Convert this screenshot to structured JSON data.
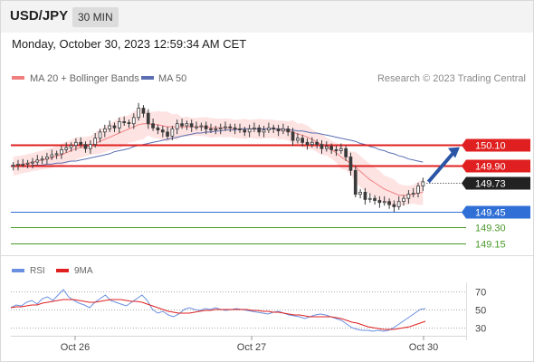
{
  "header": {
    "symbol": "USD/JPY",
    "interval": "30 MIN"
  },
  "datetime": "Monday, October 30, 2023 12:59:34 AM CET",
  "legend": {
    "ma20_label": "MA 20 + Bollinger Bands",
    "ma50_label": "MA 50",
    "credit": "Research © 2023 Trading Central",
    "rsi_label": "RSI",
    "rsi_ma_label": "9MA"
  },
  "colors": {
    "candle": "#3b3b3b",
    "ma20": "#f08080",
    "ma50": "#5b6fb2",
    "band": "#fdd9d9",
    "resistance": "#e02020",
    "current": "#222222",
    "support_main": "#2f6fd6",
    "support_minor": "#4a9a2a",
    "arrow": "#2a55a6",
    "rsi": "#6a8fe0",
    "rsi_ma": "#e02020"
  },
  "chart_data": [
    {
      "type": "candlestick",
      "title": "",
      "x_tick_labels": [
        "Oct 26",
        "Oct 27",
        "Oct 30"
      ],
      "ylim": [
        149.05,
        150.62
      ],
      "levels": [
        {
          "value": 150.1,
          "label": "150.10",
          "kind": "resistance"
        },
        {
          "value": 149.9,
          "label": "149.90",
          "kind": "resistance"
        },
        {
          "value": 149.73,
          "label": "149.73",
          "kind": "current"
        },
        {
          "value": 149.45,
          "label": "149.45",
          "kind": "support"
        },
        {
          "value": 149.3,
          "label": "149.30",
          "kind": "minor-support"
        },
        {
          "value": 149.15,
          "label": "149.15",
          "kind": "minor-support"
        }
      ],
      "forecast_arrow": {
        "from": 149.74,
        "to": 150.1,
        "direction": "up"
      },
      "closes": [
        149.9,
        149.91,
        149.91,
        149.92,
        149.93,
        149.95,
        149.96,
        149.98,
        150.0,
        150.01,
        150.05,
        150.07,
        150.09,
        150.12,
        150.1,
        150.06,
        150.1,
        150.16,
        150.22,
        150.25,
        150.28,
        150.26,
        150.32,
        150.31,
        150.3,
        150.36,
        150.45,
        150.4,
        150.3,
        150.26,
        150.24,
        150.22,
        150.18,
        150.25,
        150.3,
        150.28,
        150.3,
        150.27,
        150.27,
        150.28,
        150.25,
        150.24,
        150.25,
        150.26,
        150.27,
        150.26,
        150.25,
        150.24,
        150.22,
        150.25,
        150.26,
        150.22,
        150.24,
        150.26,
        150.25,
        150.23,
        150.25,
        150.22,
        150.14,
        150.16,
        150.12,
        150.1,
        150.12,
        150.1,
        150.06,
        150.08,
        150.05,
        150.04,
        150.06,
        149.98,
        149.85,
        149.62,
        149.64,
        149.57,
        149.58,
        149.56,
        149.54,
        149.55,
        149.52,
        149.5,
        149.55,
        149.58,
        149.62,
        149.63,
        149.7,
        149.74
      ],
      "series": [
        {
          "name": "MA 20 + Bollinger Bands",
          "values": [
            149.89,
            149.9,
            149.91,
            149.92,
            149.93,
            149.94,
            149.95,
            149.96,
            149.97,
            149.99,
            150.0,
            150.02,
            150.04,
            150.06,
            150.07,
            150.08,
            150.09,
            150.11,
            150.13,
            150.15,
            150.17,
            150.19,
            150.21,
            150.23,
            150.25,
            150.27,
            150.29,
            150.3,
            150.3,
            150.29,
            150.29,
            150.28,
            150.27,
            150.27,
            150.27,
            150.27,
            150.27,
            150.27,
            150.27,
            150.27,
            150.27,
            150.26,
            150.26,
            150.26,
            150.26,
            150.26,
            150.25,
            150.25,
            150.25,
            150.25,
            150.25,
            150.25,
            150.25,
            150.25,
            150.25,
            150.24,
            150.24,
            150.23,
            150.22,
            150.2,
            150.19,
            150.17,
            150.15,
            150.12,
            150.1,
            150.08,
            150.05,
            150.02,
            149.98,
            149.95,
            149.92,
            149.88,
            149.84,
            149.8,
            149.76,
            149.73,
            149.7,
            149.67,
            149.65,
            149.63,
            149.61,
            149.61,
            149.61,
            149.62,
            149.63,
            149.64
          ]
        },
        {
          "name": "MA 50",
          "values": [
            149.89,
            149.89,
            149.89,
            149.89,
            149.9,
            149.9,
            149.9,
            149.91,
            149.91,
            149.92,
            149.92,
            149.93,
            149.94,
            149.94,
            149.95,
            149.96,
            149.97,
            149.98,
            149.99,
            150.0,
            150.01,
            150.03,
            150.04,
            150.05,
            150.06,
            150.08,
            150.09,
            150.1,
            150.11,
            150.12,
            150.13,
            150.14,
            150.15,
            150.16,
            150.17,
            150.18,
            150.19,
            150.2,
            150.21,
            150.21,
            150.22,
            150.22,
            150.23,
            150.23,
            150.24,
            150.24,
            150.24,
            150.25,
            150.25,
            150.25,
            150.25,
            150.25,
            150.25,
            150.25,
            150.25,
            150.25,
            150.25,
            150.24,
            150.24,
            150.23,
            150.23,
            150.22,
            150.21,
            150.21,
            150.2,
            150.19,
            150.18,
            150.17,
            150.16,
            150.15,
            150.14,
            150.13,
            150.11,
            150.1,
            150.08,
            150.07,
            150.05,
            150.04,
            150.02,
            150.01,
            149.99,
            149.98,
            149.96,
            149.95,
            149.94,
            149.93
          ]
        }
      ]
    },
    {
      "type": "line",
      "title": "",
      "ylim": [
        20,
        80
      ],
      "y_tick_labels": [
        {
          "value": 70,
          "label": "70"
        },
        {
          "value": 50,
          "label": "50"
        },
        {
          "value": 30,
          "label": "30"
        }
      ],
      "series": [
        {
          "name": "RSI",
          "values": [
            52,
            55,
            54,
            58,
            60,
            56,
            62,
            64,
            60,
            66,
            72,
            64,
            60,
            57,
            55,
            52,
            58,
            62,
            66,
            60,
            58,
            56,
            54,
            58,
            62,
            66,
            60,
            50,
            46,
            48,
            44,
            42,
            45,
            50,
            52,
            50,
            49,
            51,
            50,
            52,
            50,
            49,
            50,
            51,
            50,
            49,
            48,
            47,
            46,
            45,
            47,
            48,
            46,
            44,
            43,
            42,
            40,
            42,
            44,
            45,
            44,
            42,
            40,
            38,
            34,
            30,
            28,
            27,
            27,
            26,
            27,
            26,
            27,
            30,
            34,
            38,
            42,
            46,
            50,
            51
          ]
        },
        {
          "name": "9MA",
          "values": [
            52,
            53,
            53,
            54,
            55,
            55,
            57,
            58,
            59,
            60,
            61,
            61,
            61,
            60,
            59,
            58,
            58,
            59,
            60,
            61,
            61,
            61,
            60,
            59,
            59,
            58,
            56,
            54,
            52,
            50,
            48,
            47,
            46,
            46,
            46,
            47,
            48,
            49,
            49,
            50,
            50,
            50,
            50,
            50,
            50,
            50,
            49,
            49,
            48,
            48,
            47,
            47,
            46,
            45,
            44,
            44,
            43,
            42,
            42,
            42,
            42,
            42,
            41,
            40,
            38,
            36,
            35,
            33,
            31,
            30,
            29,
            28,
            28,
            28,
            29,
            30,
            31,
            33,
            35,
            37
          ]
        }
      ]
    }
  ]
}
